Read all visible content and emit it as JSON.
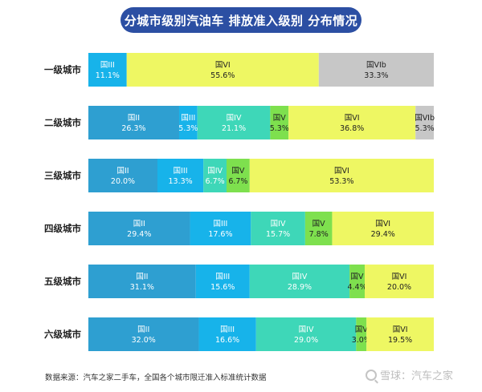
{
  "chart_data": {
    "type": "bar",
    "stacked": "100%",
    "orientation": "horizontal",
    "title": "分城市级别汽油车 排放准入级别 分布情况",
    "categories": [
      "一级城市",
      "二级城市",
      "三级城市",
      "四级城市",
      "五级城市",
      "六级城市"
    ],
    "series": [
      {
        "name": "国II",
        "color": "#2e9fd1",
        "values": [
          0,
          26.3,
          20.0,
          29.4,
          31.1,
          32.0
        ]
      },
      {
        "name": "国III",
        "color": "#17b3ea",
        "values": [
          11.1,
          5.3,
          13.3,
          17.6,
          15.6,
          16.6
        ]
      },
      {
        "name": "国IV",
        "color": "#3ed7b8",
        "values": [
          0,
          21.1,
          6.7,
          15.7,
          28.9,
          29.0
        ]
      },
      {
        "name": "国V",
        "color": "#7ee04e",
        "values": [
          0,
          5.3,
          6.7,
          7.8,
          4.4,
          3.0
        ]
      },
      {
        "name": "国VI",
        "color": "#eef763",
        "values": [
          55.6,
          36.8,
          53.3,
          29.4,
          20.0,
          19.5
        ]
      },
      {
        "name": "国VIb",
        "color": "#c7c7c7",
        "values": [
          33.3,
          5.3,
          0,
          0,
          0,
          0
        ]
      }
    ],
    "labels": [
      [
        "",
        "11.1%",
        "",
        "",
        "55.6%",
        "33.3%"
      ],
      [
        "26.3%",
        "5.3%",
        "21.1%",
        "5.3%",
        "36.8%",
        "5.3%"
      ],
      [
        "20.0%",
        "13.3%",
        "6.7%",
        "6.7%",
        "53.3%",
        ""
      ],
      [
        "29.4%",
        "17.6%",
        "15.7%",
        "7.8%",
        "29.4%",
        ""
      ],
      [
        "31.1%",
        "15.6%",
        "28.9%",
        "4.4%",
        "20.0%",
        ""
      ],
      [
        "32.0%",
        "16.6%",
        "29.0%",
        "3.0%",
        "19.5%",
        ""
      ]
    ],
    "xlim": [
      0,
      100
    ],
    "grid": false,
    "legend": "none",
    "label_text_color_dark": "#222222",
    "label_text_color_light": "#ffffff"
  },
  "source_note": "数据来源：汽车之家二手车，全国各个城市限迁准入标准统计数据",
  "watermark_text": "雪球：汽车之家"
}
